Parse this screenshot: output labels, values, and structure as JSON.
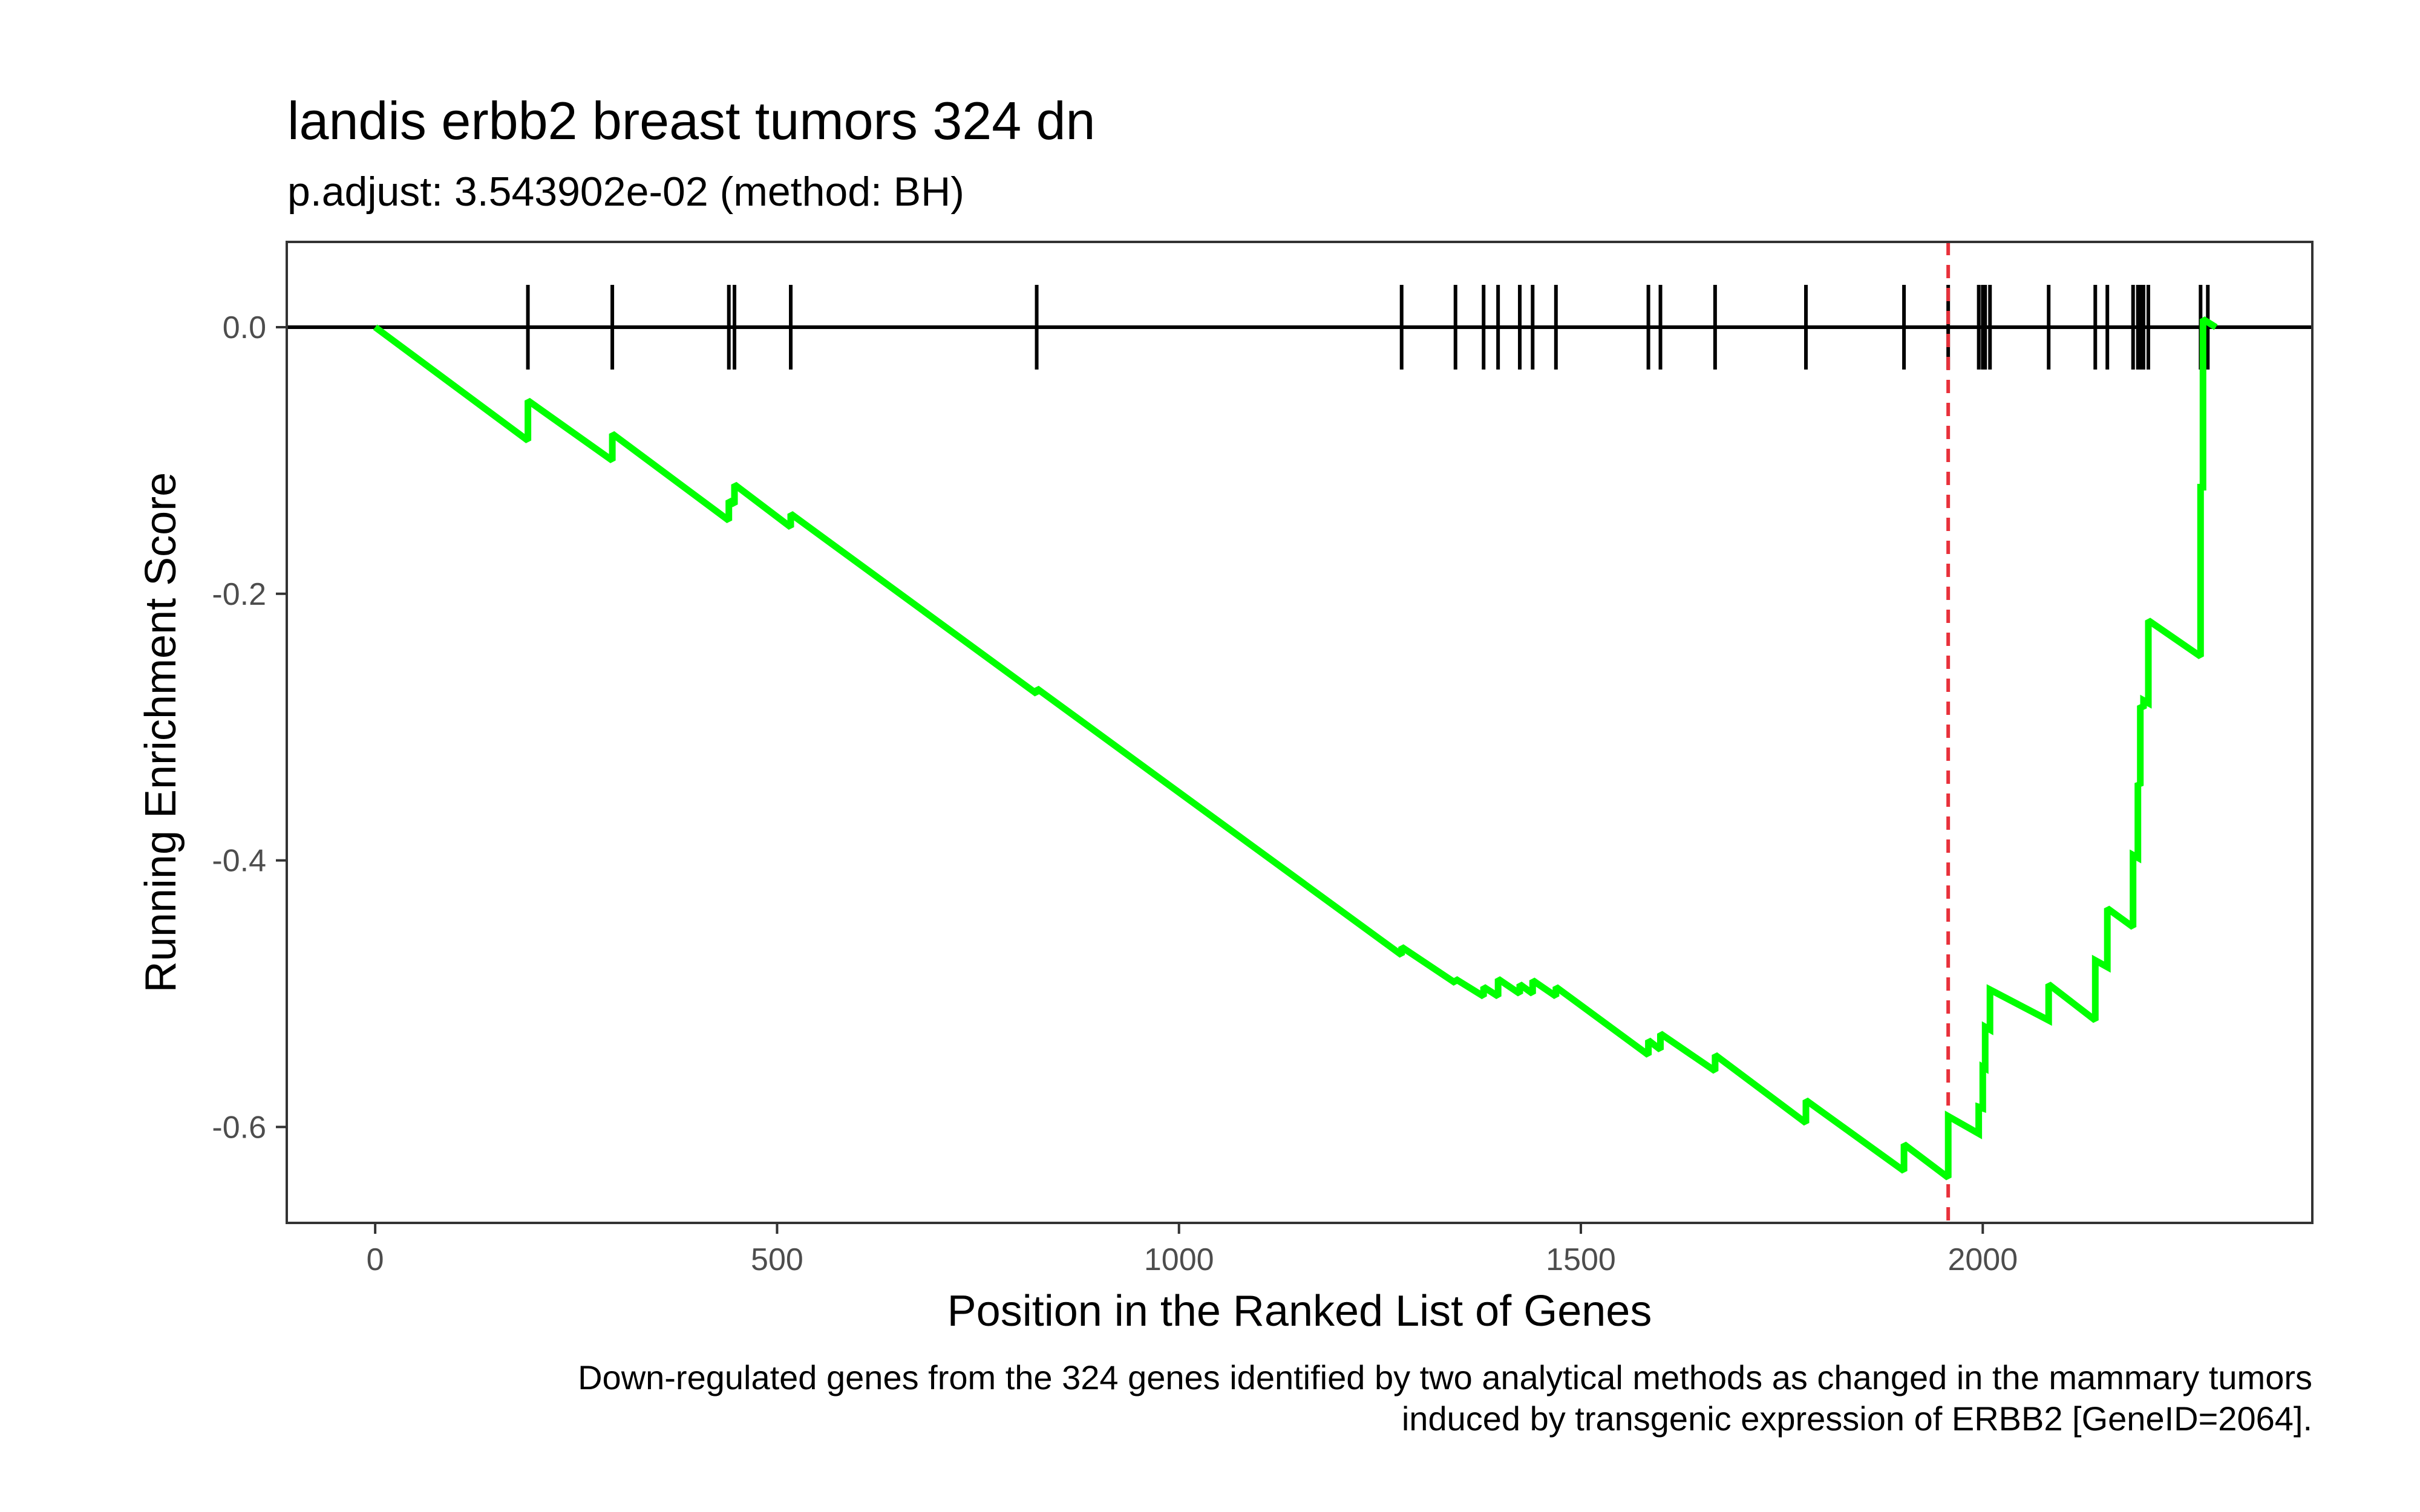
{
  "chart_data": {
    "type": "line",
    "title": "landis erbb2 breast tumors 324 dn",
    "subtitle": "p.adjust: 3.543902e-02 (method: BH)",
    "xlabel": "Position in the Ranked List of Genes",
    "ylabel": "Running Enrichment Score",
    "caption_lines": [
      "Down-regulated genes from the 324 genes identified by two analytical methods as changed in the mammary tumors",
      "induced by transgenic expression of ERBB2 [GeneID=2064]."
    ],
    "xlim": [
      -110,
      2410
    ],
    "ylim": [
      -0.672,
      0.064
    ],
    "x_ticks": [
      0,
      500,
      1000,
      1500,
      2000
    ],
    "x_tick_labels": [
      "0",
      "500",
      "1000",
      "1500",
      "2000"
    ],
    "y_ticks": [
      0.0,
      -0.2,
      -0.4,
      -0.6
    ],
    "y_tick_labels": [
      "0.0",
      "-0.2",
      "-0.4",
      "-0.6"
    ],
    "grid": false,
    "colors": {
      "line": "#00ff00",
      "peak_line": "#e8313b",
      "hits": "#000000",
      "zero_line": "#000000"
    },
    "peak_x": 1957,
    "hits": [
      190,
      295,
      440,
      447,
      517,
      823,
      1277,
      1344,
      1379,
      1397,
      1424,
      1440,
      1469,
      1584,
      1599,
      1667,
      1780,
      1902,
      1957,
      1995,
      2000,
      2003,
      2009,
      2082,
      2140,
      2155,
      2187,
      2193,
      2196,
      2200,
      2206,
      2271,
      2280
    ],
    "series": [
      {
        "points": [
          [
            0,
            0.0
          ],
          [
            190,
            -0.085
          ],
          [
            190,
            -0.055
          ],
          [
            295,
            -0.1
          ],
          [
            295,
            -0.08
          ],
          [
            440,
            -0.145
          ],
          [
            440,
            -0.13
          ],
          [
            447,
            -0.133
          ],
          [
            447,
            -0.118
          ],
          [
            517,
            -0.15
          ],
          [
            517,
            -0.14
          ],
          [
            823,
            -0.275
          ],
          [
            823,
            -0.271
          ],
          [
            1277,
            -0.471
          ],
          [
            1277,
            -0.465
          ],
          [
            1344,
            -0.492
          ],
          [
            1344,
            -0.489
          ],
          [
            1379,
            -0.502
          ],
          [
            1379,
            -0.495
          ],
          [
            1397,
            -0.502
          ],
          [
            1397,
            -0.489
          ],
          [
            1424,
            -0.5
          ],
          [
            1424,
            -0.493
          ],
          [
            1440,
            -0.5
          ],
          [
            1440,
            -0.49
          ],
          [
            1469,
            -0.502
          ],
          [
            1469,
            -0.495
          ],
          [
            1584,
            -0.546
          ],
          [
            1584,
            -0.535
          ],
          [
            1599,
            -0.542
          ],
          [
            1599,
            -0.53
          ],
          [
            1667,
            -0.558
          ],
          [
            1667,
            -0.546
          ],
          [
            1780,
            -0.597
          ],
          [
            1780,
            -0.58
          ],
          [
            1902,
            -0.633
          ],
          [
            1902,
            -0.613
          ],
          [
            1957,
            -0.638
          ],
          [
            1957,
            -0.592
          ],
          [
            1995,
            -0.605
          ],
          [
            1995,
            -0.585
          ],
          [
            2000,
            -0.586
          ],
          [
            2000,
            -0.555
          ],
          [
            2003,
            -0.556
          ],
          [
            2003,
            -0.525
          ],
          [
            2009,
            -0.527
          ],
          [
            2009,
            -0.497
          ],
          [
            2082,
            -0.52
          ],
          [
            2082,
            -0.493
          ],
          [
            2140,
            -0.52
          ],
          [
            2140,
            -0.475
          ],
          [
            2155,
            -0.48
          ],
          [
            2155,
            -0.436
          ],
          [
            2187,
            -0.45
          ],
          [
            2187,
            -0.396
          ],
          [
            2193,
            -0.398
          ],
          [
            2193,
            -0.342
          ],
          [
            2196,
            -0.344
          ],
          [
            2196,
            -0.284
          ],
          [
            2200,
            -0.286
          ],
          [
            2200,
            -0.28
          ],
          [
            2206,
            -0.282
          ],
          [
            2206,
            -0.22
          ],
          [
            2271,
            -0.247
          ],
          [
            2271,
            -0.12
          ],
          [
            2274,
            -0.12
          ],
          [
            2274,
            0.006
          ],
          [
            2290,
            0.0
          ]
        ]
      }
    ]
  }
}
